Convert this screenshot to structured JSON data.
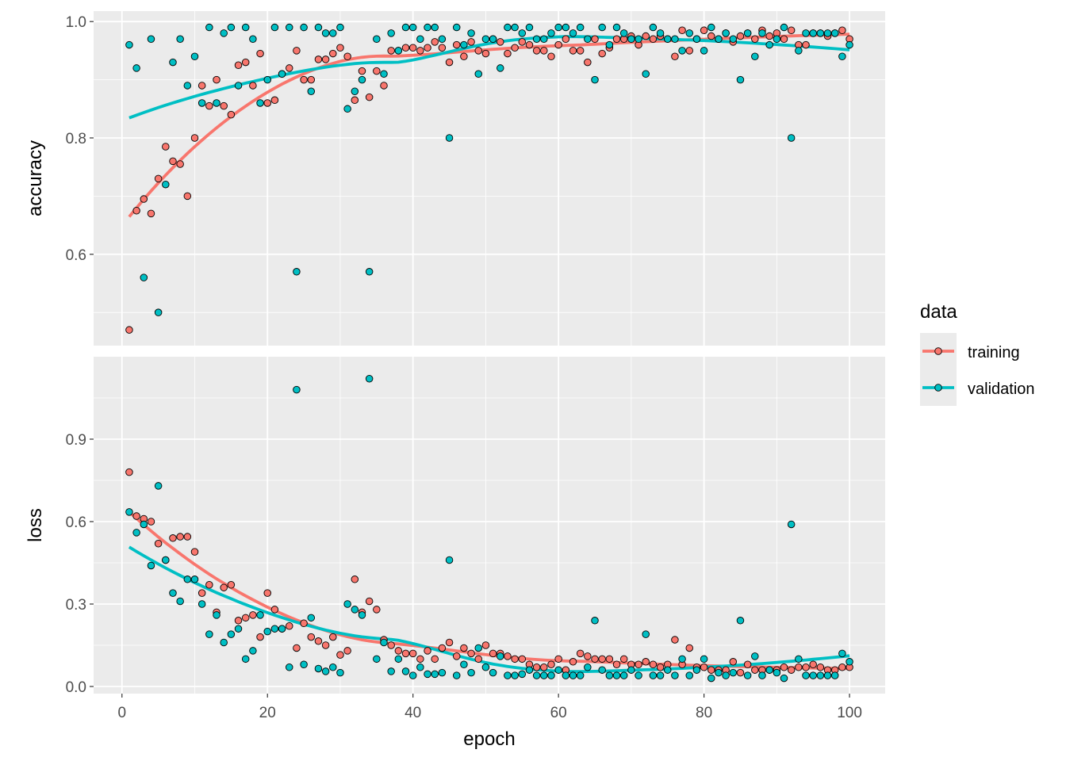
{
  "chart_data": {
    "type": "scatter",
    "x_label": "epoch",
    "x_ticks": [
      0,
      20,
      40,
      60,
      80,
      100
    ],
    "x_range": [
      -3.9,
      104.9
    ],
    "legend": {
      "title": "data",
      "placement": "right",
      "entries": [
        "training",
        "validation"
      ]
    },
    "colors": {
      "training": "#F8766D",
      "validation": "#00BFC4"
    },
    "smooth": "loess",
    "panels": [
      {
        "name": "accuracy",
        "y_label": "accuracy",
        "y_ticks": [
          0.6,
          0.8,
          1.0
        ],
        "y_tick_labels": [
          "0.6",
          "0.8",
          "1.0"
        ],
        "y_range": [
          0.443,
          1.018
        ],
        "series": [
          {
            "name": "training",
            "values": [
              0.47,
              0.675,
              0.695,
              0.67,
              0.73,
              0.785,
              0.76,
              0.755,
              0.7,
              0.8,
              0.89,
              0.855,
              0.9,
              0.855,
              0.84,
              0.925,
              0.93,
              0.89,
              0.945,
              0.86,
              0.865,
              0.91,
              0.92,
              0.95,
              0.9,
              0.9,
              0.935,
              0.935,
              0.945,
              0.955,
              0.94,
              0.865,
              0.915,
              0.87,
              0.915,
              0.89,
              0.95,
              0.95,
              0.955,
              0.955,
              0.95,
              0.955,
              0.965,
              0.955,
              0.93,
              0.96,
              0.94,
              0.965,
              0.95,
              0.945,
              0.97,
              0.965,
              0.945,
              0.955,
              0.965,
              0.96,
              0.95,
              0.95,
              0.94,
              0.96,
              0.97,
              0.95,
              0.95,
              0.93,
              0.97,
              0.945,
              0.955,
              0.97,
              0.97,
              0.975,
              0.96,
              0.975,
              0.97,
              0.975,
              0.97,
              0.94,
              0.985,
              0.95,
              0.97,
              0.985,
              0.975,
              0.97,
              0.98,
              0.965,
              0.975,
              0.98,
              0.97,
              0.985,
              0.975,
              0.98,
              0.97,
              0.985,
              0.96,
              0.96,
              0.98,
              0.98,
              0.975,
              0.98,
              0.985,
              0.97
            ]
          },
          {
            "name": "validation",
            "values": [
              0.96,
              0.92,
              0.56,
              0.97,
              0.5,
              0.72,
              0.93,
              0.97,
              0.89,
              0.94,
              0.86,
              0.99,
              0.86,
              0.98,
              0.99,
              0.89,
              0.99,
              0.97,
              0.86,
              0.9,
              0.99,
              0.91,
              0.99,
              0.57,
              0.99,
              0.88,
              0.99,
              0.98,
              0.98,
              0.99,
              0.85,
              0.88,
              0.9,
              0.57,
              0.97,
              0.91,
              0.98,
              0.95,
              0.99,
              0.99,
              0.97,
              0.99,
              0.99,
              0.97,
              0.8,
              0.99,
              0.96,
              0.98,
              0.91,
              0.97,
              0.97,
              0.92,
              0.99,
              0.99,
              0.98,
              0.99,
              0.97,
              0.97,
              0.98,
              0.99,
              0.99,
              0.98,
              0.99,
              0.97,
              0.9,
              0.99,
              0.96,
              0.99,
              0.98,
              0.97,
              0.97,
              0.91,
              0.99,
              0.98,
              0.97,
              0.97,
              0.95,
              0.98,
              0.97,
              0.95,
              0.99,
              0.97,
              0.98,
              0.97,
              0.9,
              0.98,
              0.94,
              0.98,
              0.96,
              0.97,
              0.99,
              0.8,
              0.95,
              0.98,
              0.98,
              0.98,
              0.98,
              0.98,
              0.94,
              0.96
            ]
          }
        ]
      },
      {
        "name": "loss",
        "y_label": "loss",
        "y_ticks": [
          0.0,
          0.3,
          0.6,
          0.9
        ],
        "y_tick_labels": [
          "0.0",
          "0.3",
          "0.6",
          "0.9"
        ],
        "y_range": [
          -0.026,
          1.2
        ],
        "series": [
          {
            "name": "training",
            "values": [
              0.78,
              0.62,
              0.61,
              0.6,
              0.52,
              0.46,
              0.54,
              0.545,
              0.545,
              0.49,
              0.34,
              0.37,
              0.27,
              0.36,
              0.37,
              0.24,
              0.25,
              0.26,
              0.18,
              0.34,
              0.28,
              0.21,
              0.22,
              0.14,
              0.23,
              0.18,
              0.165,
              0.15,
              0.18,
              0.115,
              0.13,
              0.39,
              0.27,
              0.31,
              0.28,
              0.17,
              0.15,
              0.13,
              0.12,
              0.12,
              0.1,
              0.13,
              0.1,
              0.14,
              0.16,
              0.11,
              0.14,
              0.12,
              0.1,
              0.15,
              0.12,
              0.12,
              0.11,
              0.1,
              0.1,
              0.08,
              0.07,
              0.07,
              0.08,
              0.1,
              0.06,
              0.09,
              0.12,
              0.11,
              0.1,
              0.1,
              0.1,
              0.08,
              0.1,
              0.08,
              0.08,
              0.09,
              0.08,
              0.07,
              0.08,
              0.17,
              0.08,
              0.14,
              0.07,
              0.07,
              0.06,
              0.06,
              0.06,
              0.09,
              0.05,
              0.08,
              0.06,
              0.06,
              0.06,
              0.06,
              0.07,
              0.06,
              0.07,
              0.07,
              0.08,
              0.07,
              0.06,
              0.06,
              0.07,
              0.07
            ]
          },
          {
            "name": "validation",
            "values": [
              0.635,
              0.56,
              0.59,
              0.44,
              0.73,
              0.46,
              0.34,
              0.31,
              0.39,
              0.39,
              0.3,
              0.19,
              0.26,
              0.16,
              0.19,
              0.21,
              0.1,
              0.13,
              0.26,
              0.2,
              0.21,
              0.21,
              0.07,
              1.08,
              0.08,
              0.25,
              0.065,
              0.055,
              0.07,
              0.05,
              0.3,
              0.28,
              0.26,
              1.12,
              0.1,
              0.16,
              0.055,
              0.1,
              0.055,
              0.04,
              0.07,
              0.045,
              0.045,
              0.05,
              0.46,
              0.04,
              0.08,
              0.05,
              0.14,
              0.07,
              0.05,
              0.11,
              0.04,
              0.04,
              0.045,
              0.06,
              0.04,
              0.04,
              0.04,
              0.06,
              0.04,
              0.04,
              0.04,
              0.07,
              0.24,
              0.06,
              0.04,
              0.04,
              0.04,
              0.06,
              0.04,
              0.19,
              0.04,
              0.04,
              0.06,
              0.04,
              0.1,
              0.04,
              0.06,
              0.1,
              0.03,
              0.05,
              0.04,
              0.05,
              0.24,
              0.04,
              0.11,
              0.04,
              0.06,
              0.05,
              0.03,
              0.59,
              0.1,
              0.04,
              0.04,
              0.04,
              0.04,
              0.04,
              0.12,
              0.09
            ]
          }
        ]
      }
    ]
  }
}
